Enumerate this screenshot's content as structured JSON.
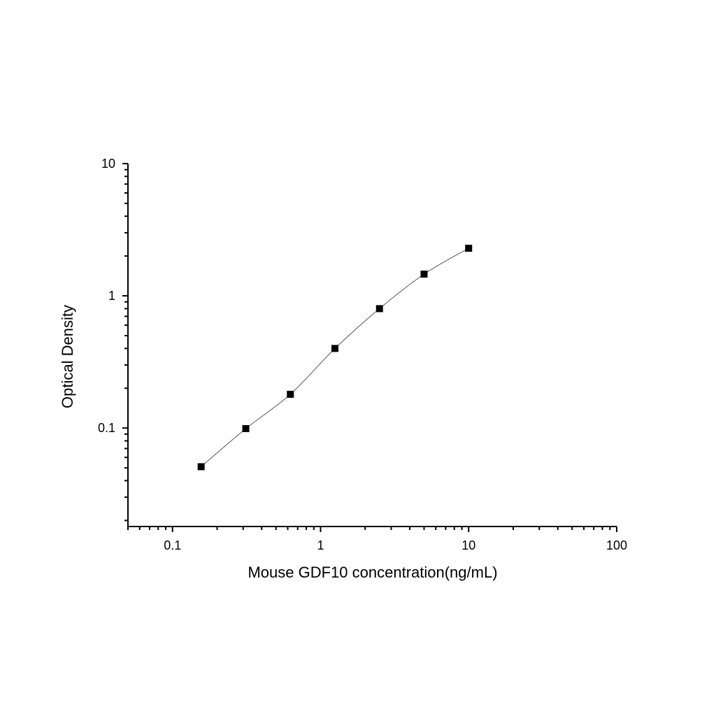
{
  "chart_data": {
    "type": "scatter",
    "title": "",
    "xlabel": "Mouse GDF10 concentration(ng/mL)",
    "ylabel": "Optical Density",
    "xscale": "log",
    "yscale": "log",
    "xlim": [
      0.05,
      100
    ],
    "ylim": [
      0.018,
      10
    ],
    "xticks": [
      "0.1",
      "1",
      "10",
      "100"
    ],
    "yticks": [
      "0.1",
      "1",
      "10"
    ],
    "grid": false,
    "legend": "none",
    "fit_curve": true,
    "marker": "square",
    "color": "#000000",
    "curve_color": "#555555",
    "series": [
      {
        "x": [
          0.156,
          0.3125,
          0.625,
          1.25,
          2.5,
          5,
          10
        ],
        "y": [
          0.051,
          0.099,
          0.18,
          0.4,
          0.8,
          1.46,
          2.29
        ]
      }
    ]
  }
}
